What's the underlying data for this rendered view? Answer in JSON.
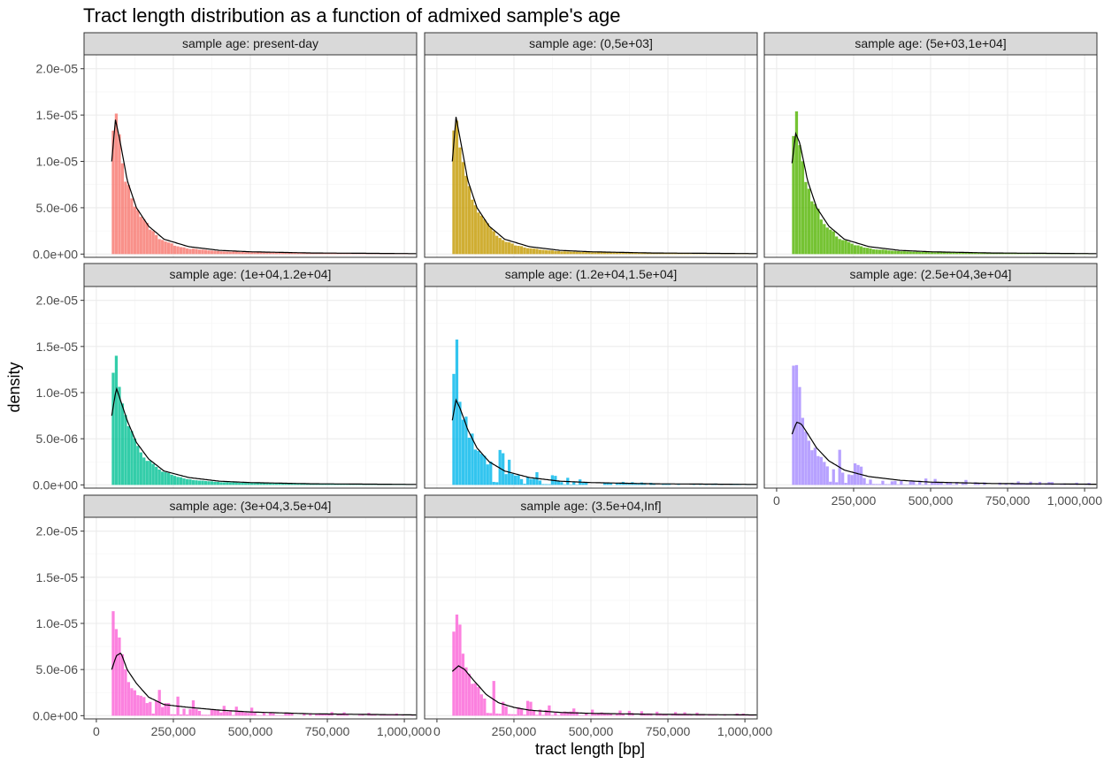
{
  "chart_data": {
    "type": "histogram_facets",
    "title": "Tract length distribution as a function of admixed sample's age",
    "xlabel": "tract length [bp]",
    "ylabel": "density",
    "xlim": [
      -40000,
      1040000
    ],
    "ylim": [
      -3.5e-07,
      2.15e-05
    ],
    "x_ticks": [
      0,
      250000,
      500000,
      750000,
      1000000
    ],
    "x_tick_labels": [
      "0",
      "250,000",
      "500,000",
      "750,000",
      "1,000,000"
    ],
    "y_ticks": [
      0,
      5e-06,
      1e-05,
      1.5e-05,
      2e-05
    ],
    "y_tick_labels": [
      "0.0e+00",
      "5.0e-06",
      "1.0e-05",
      "1.5e-05",
      "2.0e-05"
    ],
    "grid": true,
    "legend": "none",
    "bin_width": 10000,
    "bin_start": 50000,
    "panels": [
      {
        "strip": "sample age: present-day",
        "color": "#F8766D",
        "hist_anchors": [
          [
            50000,
            9.8e-06
          ],
          [
            60000,
            1.6e-05
          ],
          [
            70000,
            1.4e-05
          ],
          [
            80000,
            1.05e-05
          ],
          [
            100000,
            7.5e-06
          ],
          [
            120000,
            5.8e-06
          ],
          [
            150000,
            3.8e-06
          ],
          [
            200000,
            1.8e-06
          ],
          [
            250000,
            1e-06
          ],
          [
            300000,
            6e-07
          ],
          [
            400000,
            3e-07
          ],
          [
            500000,
            2e-07
          ],
          [
            700000,
            1e-07
          ],
          [
            1000000,
            5e-08
          ]
        ],
        "density": [
          [
            50000,
            1e-05
          ],
          [
            62000,
            1.45e-05
          ],
          [
            75000,
            1.25e-05
          ],
          [
            100000,
            8e-06
          ],
          [
            130000,
            5e-06
          ],
          [
            170000,
            3e-06
          ],
          [
            220000,
            1.6e-06
          ],
          [
            300000,
            8e-07
          ],
          [
            400000,
            4e-07
          ],
          [
            500000,
            2.5e-07
          ],
          [
            700000,
            1.2e-07
          ],
          [
            1040000,
            5e-08
          ]
        ]
      },
      {
        "strip": "sample age: (0,5e+03]",
        "color": "#C49A00",
        "hist_anchors": [
          [
            50000,
            1e-05
          ],
          [
            60000,
            1.6e-05
          ],
          [
            70000,
            1.38e-05
          ],
          [
            80000,
            1.05e-05
          ],
          [
            100000,
            7.6e-06
          ],
          [
            120000,
            5.7e-06
          ],
          [
            150000,
            3.7e-06
          ],
          [
            200000,
            1.8e-06
          ],
          [
            250000,
            1e-06
          ],
          [
            300000,
            6e-07
          ],
          [
            400000,
            3e-07
          ],
          [
            500000,
            2e-07
          ],
          [
            700000,
            1e-07
          ],
          [
            1000000,
            5e-08
          ]
        ],
        "density": [
          [
            50000,
            1e-05
          ],
          [
            62000,
            1.48e-05
          ],
          [
            75000,
            1.25e-05
          ],
          [
            100000,
            8e-06
          ],
          [
            130000,
            5e-06
          ],
          [
            170000,
            3e-06
          ],
          [
            220000,
            1.6e-06
          ],
          [
            300000,
            8e-07
          ],
          [
            400000,
            4e-07
          ],
          [
            500000,
            2.5e-07
          ],
          [
            700000,
            1.2e-07
          ],
          [
            1040000,
            5e-08
          ]
        ]
      },
      {
        "strip": "sample age: (5e+03,1e+04]",
        "color": "#53B400",
        "hist_anchors": [
          [
            50000,
            9.5e-06
          ],
          [
            60000,
            1.55e-05
          ],
          [
            70000,
            1.35e-05
          ],
          [
            80000,
            1.05e-05
          ],
          [
            100000,
            7.5e-06
          ],
          [
            120000,
            5.6e-06
          ],
          [
            150000,
            3.6e-06
          ],
          [
            200000,
            1.8e-06
          ],
          [
            250000,
            1e-06
          ],
          [
            300000,
            6e-07
          ],
          [
            400000,
            3e-07
          ],
          [
            500000,
            2e-07
          ],
          [
            700000,
            1e-07
          ],
          [
            1000000,
            5e-08
          ]
        ],
        "density": [
          [
            50000,
            9.8e-06
          ],
          [
            62000,
            1.3e-05
          ],
          [
            75000,
            1.2e-05
          ],
          [
            100000,
            8e-06
          ],
          [
            130000,
            5e-06
          ],
          [
            170000,
            3e-06
          ],
          [
            220000,
            1.6e-06
          ],
          [
            300000,
            8e-07
          ],
          [
            400000,
            4e-07
          ],
          [
            500000,
            2.5e-07
          ],
          [
            700000,
            1.2e-07
          ],
          [
            1040000,
            5e-08
          ]
        ]
      },
      {
        "strip": "sample age: (1e+04,1.2e+04]",
        "color": "#00C094",
        "hist_anchors": [
          [
            50000,
            8.5e-06
          ],
          [
            60000,
            1.55e-05
          ],
          [
            70000,
            1.2e-05
          ],
          [
            80000,
            9e-06
          ],
          [
            100000,
            7e-06
          ],
          [
            120000,
            5e-06
          ],
          [
            150000,
            3.2e-06
          ],
          [
            200000,
            1.7e-06
          ],
          [
            250000,
            1e-06
          ],
          [
            300000,
            6e-07
          ],
          [
            400000,
            3e-07
          ],
          [
            500000,
            2e-07
          ],
          [
            700000,
            1e-07
          ],
          [
            1000000,
            5e-08
          ]
        ],
        "density": [
          [
            50000,
            7.5e-06
          ],
          [
            65000,
            1.05e-05
          ],
          [
            80000,
            9e-06
          ],
          [
            100000,
            7e-06
          ],
          [
            130000,
            4.6e-06
          ],
          [
            170000,
            2.8e-06
          ],
          [
            220000,
            1.5e-06
          ],
          [
            300000,
            8e-07
          ],
          [
            400000,
            4e-07
          ],
          [
            500000,
            2.5e-07
          ],
          [
            700000,
            1.2e-07
          ],
          [
            1040000,
            5e-08
          ]
        ]
      },
      {
        "strip": "sample age: (1.2e+04,1.5e+04]",
        "color": "#00B6EB",
        "hist_anchors": [
          [
            50000,
            9e-06
          ],
          [
            60000,
            1.65e-05
          ],
          [
            70000,
            1.2e-05
          ],
          [
            80000,
            8e-06
          ],
          [
            100000,
            6e-06
          ],
          [
            120000,
            4.5e-06
          ],
          [
            150000,
            3e-06
          ],
          [
            200000,
            1.8e-06
          ],
          [
            250000,
            1e-06
          ],
          [
            300000,
            7e-07
          ],
          [
            400000,
            4e-07
          ],
          [
            500000,
            2e-07
          ],
          [
            700000,
            1e-07
          ],
          [
            1000000,
            5e-08
          ]
        ],
        "density": [
          [
            50000,
            7e-06
          ],
          [
            62000,
            9.2e-06
          ],
          [
            75000,
            8.3e-06
          ],
          [
            100000,
            6e-06
          ],
          [
            130000,
            4e-06
          ],
          [
            170000,
            2.5e-06
          ],
          [
            220000,
            1.5e-06
          ],
          [
            300000,
            8e-07
          ],
          [
            400000,
            4e-07
          ],
          [
            500000,
            2.5e-07
          ],
          [
            700000,
            1.2e-07
          ],
          [
            1040000,
            5e-08
          ]
        ]
      },
      {
        "strip": "sample age: (2.5e+04,3e+04]",
        "color": "#A58AFF",
        "hist_anchors": [
          [
            50000,
            1.05e-05
          ],
          [
            60000,
            1.2e-05
          ],
          [
            70000,
            1.1e-05
          ],
          [
            80000,
            7.5e-06
          ],
          [
            100000,
            5.5e-06
          ],
          [
            120000,
            4e-06
          ],
          [
            150000,
            2.8e-06
          ],
          [
            200000,
            1.8e-06
          ],
          [
            250000,
            1.1e-06
          ],
          [
            300000,
            7e-07
          ],
          [
            400000,
            4e-07
          ],
          [
            500000,
            3e-07
          ],
          [
            700000,
            2e-07
          ],
          [
            1000000,
            1e-07
          ]
        ],
        "density": [
          [
            50000,
            5.5e-06
          ],
          [
            65000,
            6.8e-06
          ],
          [
            80000,
            6.6e-06
          ],
          [
            100000,
            5.6e-06
          ],
          [
            130000,
            4e-06
          ],
          [
            170000,
            2.6e-06
          ],
          [
            220000,
            1.6e-06
          ],
          [
            300000,
            9e-07
          ],
          [
            400000,
            5e-07
          ],
          [
            500000,
            3e-07
          ],
          [
            700000,
            1.5e-07
          ],
          [
            1040000,
            7e-08
          ]
        ]
      },
      {
        "strip": "sample age: (3e+04,3.5e+04]",
        "color": "#FB61D7",
        "hist_anchors": [
          [
            50000,
            8.5e-06
          ],
          [
            60000,
            1.3e-05
          ],
          [
            70000,
            9e-06
          ],
          [
            80000,
            6.5e-06
          ],
          [
            100000,
            4e-06
          ],
          [
            120000,
            3.2e-06
          ],
          [
            150000,
            2e-06
          ],
          [
            200000,
            1.3e-06
          ],
          [
            250000,
            1e-06
          ],
          [
            300000,
            8e-07
          ],
          [
            400000,
            5e-07
          ],
          [
            500000,
            4e-07
          ],
          [
            700000,
            2e-07
          ],
          [
            1000000,
            1e-07
          ]
        ],
        "density": [
          [
            50000,
            5e-06
          ],
          [
            65000,
            6.5e-06
          ],
          [
            80000,
            6.8e-06
          ],
          [
            100000,
            5e-06
          ],
          [
            130000,
            3.5e-06
          ],
          [
            170000,
            2e-06
          ],
          [
            220000,
            1.2e-06
          ],
          [
            300000,
            9e-07
          ],
          [
            400000,
            6e-07
          ],
          [
            500000,
            4e-07
          ],
          [
            700000,
            2e-07
          ],
          [
            1040000,
            8e-08
          ]
        ]
      },
      {
        "strip": "sample age: (3.5e+04,Inf]",
        "color": "#FB61D7",
        "hist_anchors": [
          [
            50000,
            5e-06
          ],
          [
            60000,
            1.4e-05
          ],
          [
            70000,
            1.1e-05
          ],
          [
            80000,
            8e-06
          ],
          [
            100000,
            5e-06
          ],
          [
            120000,
            3.5e-06
          ],
          [
            150000,
            2.2e-06
          ],
          [
            200000,
            1.5e-06
          ],
          [
            250000,
            1e-06
          ],
          [
            300000,
            7e-07
          ],
          [
            400000,
            4e-07
          ],
          [
            500000,
            3e-07
          ],
          [
            700000,
            2e-07
          ],
          [
            1000000,
            1e-07
          ]
        ],
        "density": [
          [
            50000,
            4.8e-06
          ],
          [
            70000,
            5.4e-06
          ],
          [
            90000,
            5e-06
          ],
          [
            120000,
            3.8e-06
          ],
          [
            160000,
            2.3e-06
          ],
          [
            200000,
            1.4e-06
          ],
          [
            250000,
            9e-07
          ],
          [
            300000,
            6e-07
          ],
          [
            400000,
            3.5e-07
          ],
          [
            500000,
            2.5e-07
          ],
          [
            700000,
            1.5e-07
          ],
          [
            1040000,
            8e-08
          ]
        ]
      }
    ]
  }
}
